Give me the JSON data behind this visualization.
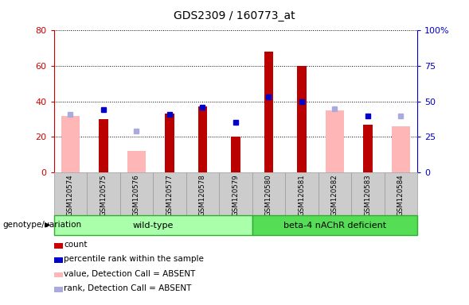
{
  "title": "GDS2309 / 160773_at",
  "samples": [
    "GSM120574",
    "GSM120575",
    "GSM120576",
    "GSM120577",
    "GSM120578",
    "GSM120579",
    "GSM120580",
    "GSM120581",
    "GSM120582",
    "GSM120583",
    "GSM120584"
  ],
  "red_bars": [
    null,
    30,
    null,
    33,
    37,
    20,
    68,
    60,
    null,
    27,
    null
  ],
  "pink_bars": [
    32,
    null,
    12,
    null,
    null,
    null,
    null,
    null,
    35,
    null,
    26
  ],
  "blue_squares_pct": [
    null,
    44,
    null,
    41,
    46,
    35,
    53,
    50,
    null,
    40,
    null
  ],
  "light_blue_squares_pct": [
    41,
    null,
    29,
    null,
    null,
    null,
    null,
    null,
    45,
    null,
    40
  ],
  "ylim_left": [
    0,
    80
  ],
  "ylim_right": [
    0,
    100
  ],
  "yticks_left": [
    0,
    20,
    40,
    60,
    80
  ],
  "yticks_right": [
    0,
    25,
    50,
    75,
    100
  ],
  "ytick_labels_right": [
    "0",
    "25",
    "50",
    "75",
    "100%"
  ],
  "left_axis_color": "#cc0000",
  "right_axis_color": "#0000cc",
  "groups": [
    {
      "label": "wild-type",
      "start": 0,
      "end": 6,
      "color": "#aaffaa"
    },
    {
      "label": "beta-4 nAChR deficient",
      "start": 6,
      "end": 11,
      "color": "#55dd55"
    }
  ],
  "group_label": "genotype/variation",
  "legend_items": [
    {
      "color": "#cc0000",
      "label": "count"
    },
    {
      "color": "#0000cc",
      "label": "percentile rank within the sample"
    },
    {
      "color": "#ffb6b6",
      "label": "value, Detection Call = ABSENT"
    },
    {
      "color": "#aaaadd",
      "label": "rank, Detection Call = ABSENT"
    }
  ],
  "red_bar_color": "#bb0000",
  "pink_bar_color": "#ffb6b6",
  "blue_sq_color": "#0000cc",
  "light_blue_sq_color": "#aaaadd",
  "sample_box_color": "#cccccc",
  "sample_box_edge": "#999999",
  "dotted_grid_color": "#000000"
}
